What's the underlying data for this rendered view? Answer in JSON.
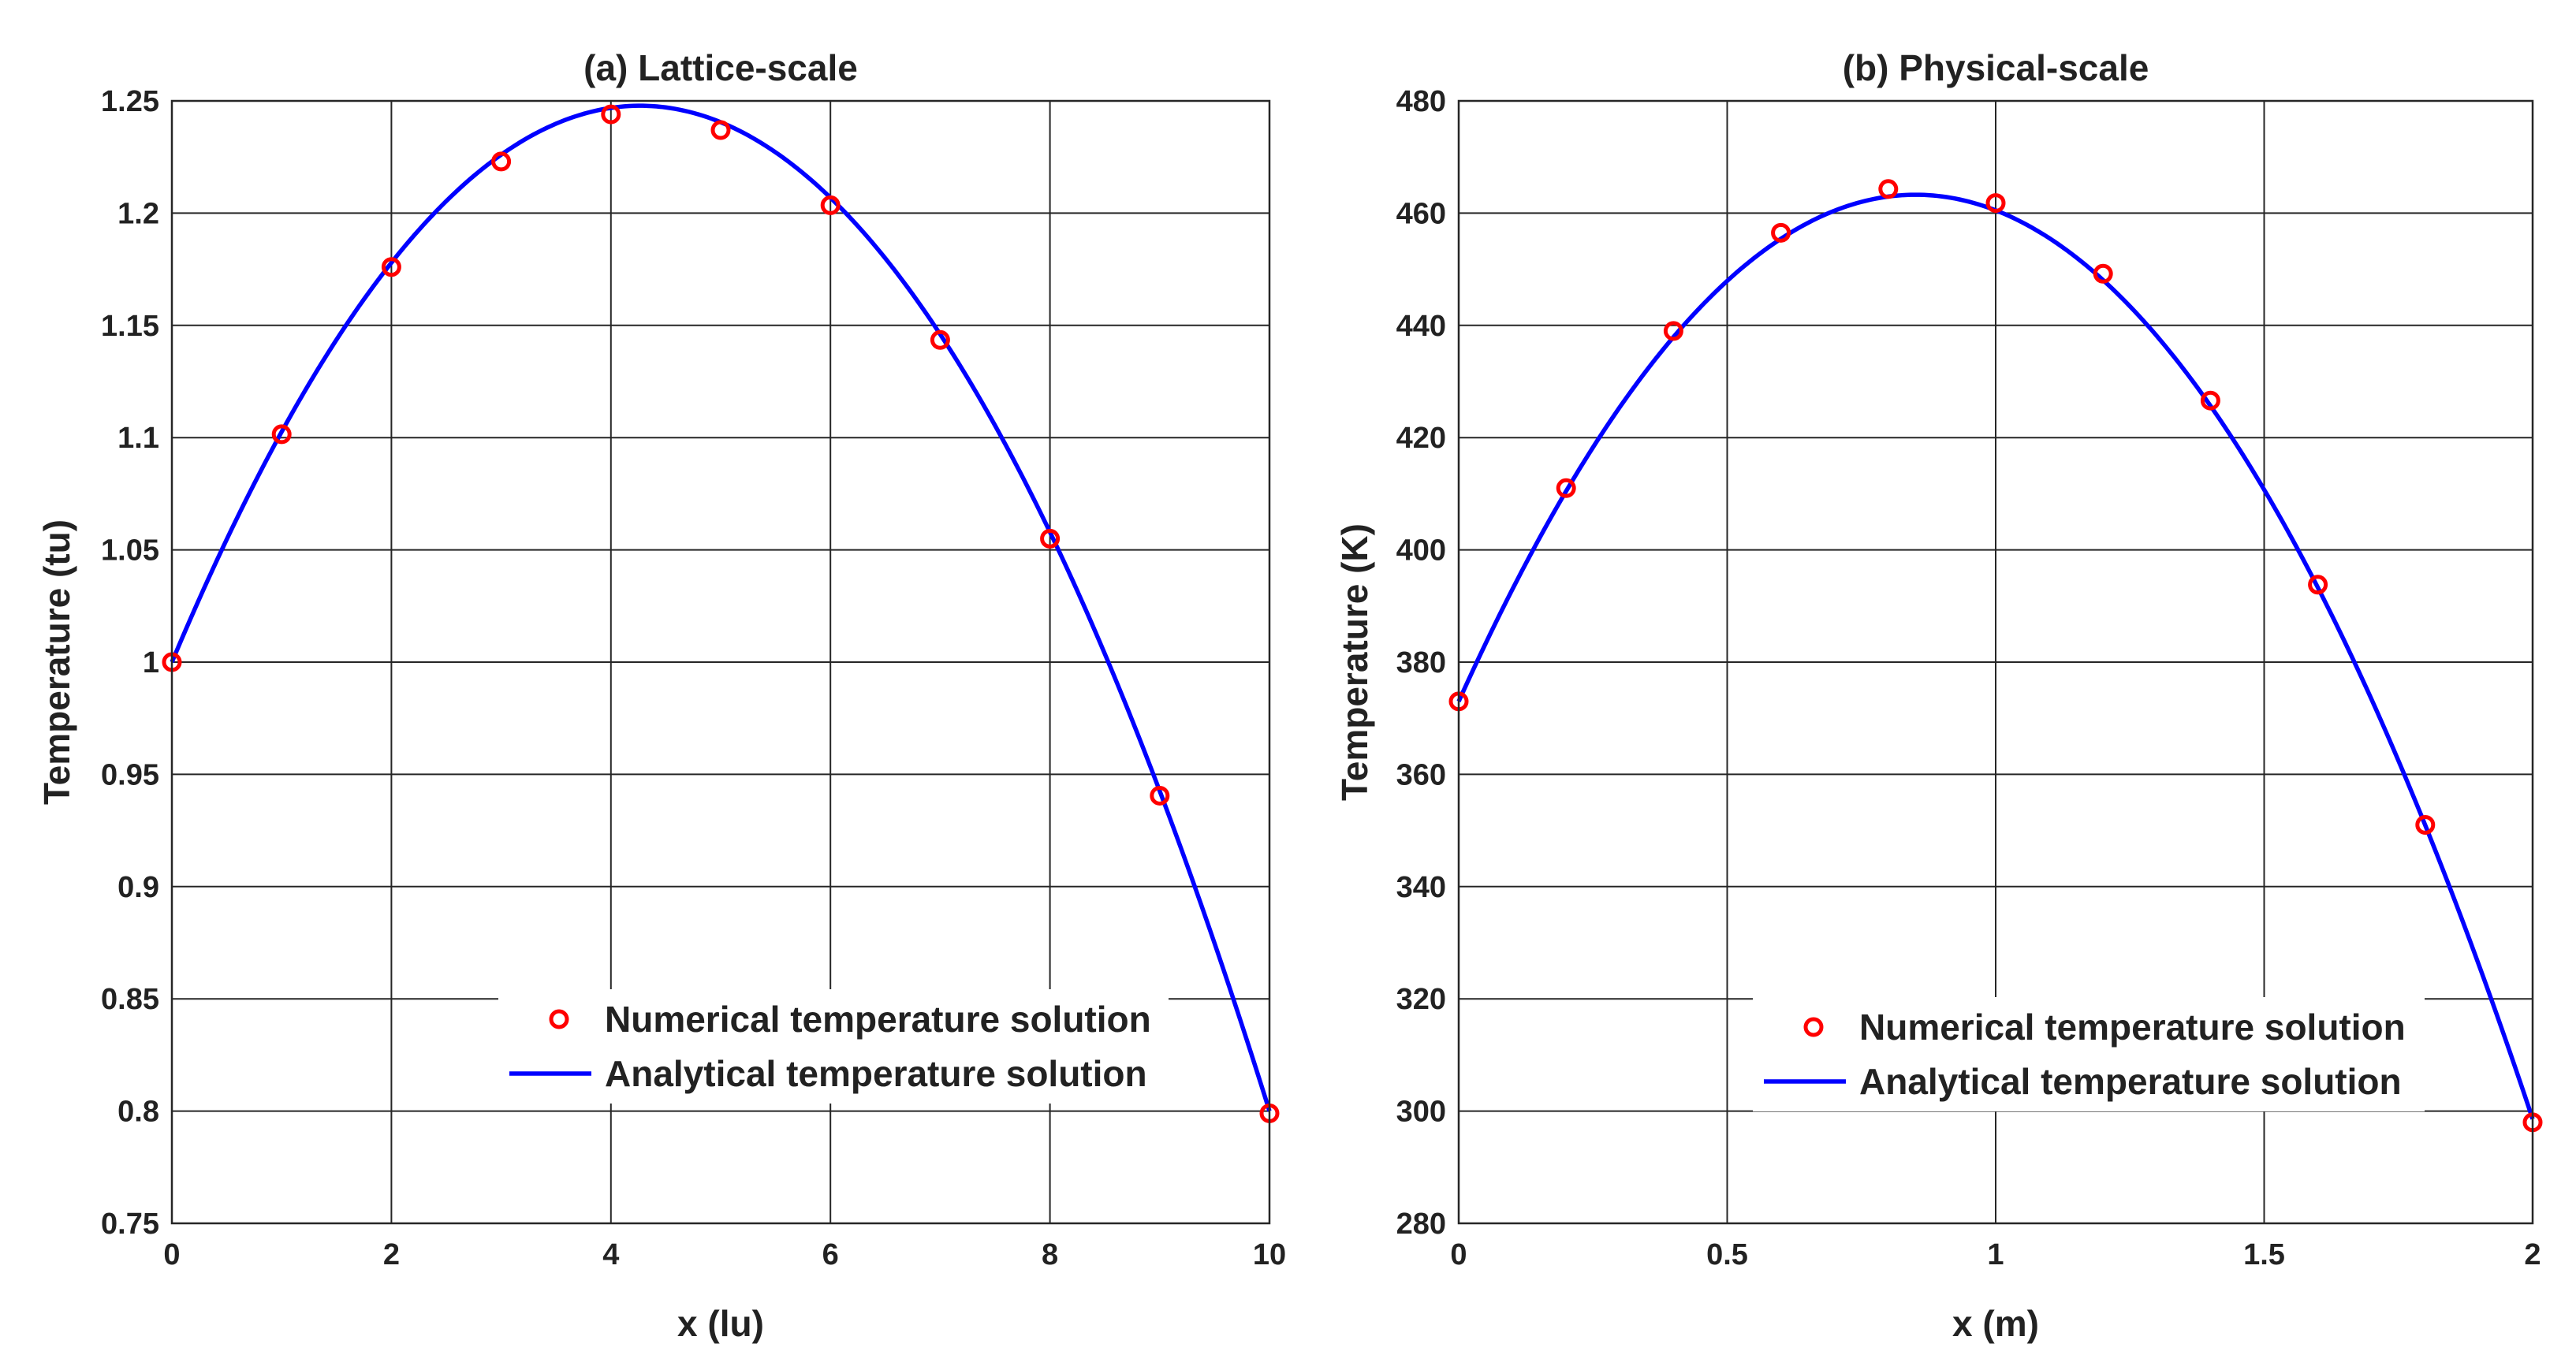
{
  "colors": {
    "numerical": "#ff0000",
    "analytical": "#0000ff",
    "axes": "#262626",
    "text": "#222222"
  },
  "chart_data": [
    {
      "type": "line",
      "title": "(a) Lattice-scale",
      "xlabel": "x (lu)",
      "ylabel": "Temperature (tu)",
      "xlim": [
        0,
        10
      ],
      "ylim": [
        0.75,
        1.25
      ],
      "xticks": [
        0,
        2,
        4,
        6,
        8,
        10
      ],
      "xtick_labels": [
        "0",
        "2",
        "4",
        "6",
        "8",
        "10"
      ],
      "yticks": [
        0.75,
        0.8,
        0.85,
        0.9,
        0.95,
        1,
        1.05,
        1.1,
        1.15,
        1.2,
        1.25
      ],
      "ytick_labels": [
        "0.75",
        "0.8",
        "0.85",
        "0.9",
        "0.95",
        "1",
        "1.05",
        "1.1",
        "1.15",
        "1.2",
        "1.25"
      ],
      "grid": true,
      "legend": {
        "position": "lower-right",
        "entries": [
          "Numerical temperature solution",
          "Analytical temperature solution"
        ]
      },
      "series": [
        {
          "name": "Numerical temperature solution",
          "style": "markers",
          "x": [
            0,
            1,
            2,
            3,
            4,
            5,
            6,
            7,
            8,
            9,
            10
          ],
          "y": [
            1.0,
            1.1015,
            1.176,
            1.223,
            1.244,
            1.237,
            1.2035,
            1.1435,
            1.055,
            0.9405,
            0.799
          ]
        },
        {
          "name": "Analytical temperature solution",
          "style": "line",
          "model": "quadratic",
          "coefficients": [
            1.0,
            0.1162,
            -0.01362
          ],
          "x_range": [
            0,
            10
          ]
        }
      ]
    },
    {
      "type": "line",
      "title": "(b) Physical-scale",
      "xlabel": "x (m)",
      "ylabel": "Temperature (K)",
      "xlim": [
        0,
        2
      ],
      "ylim": [
        280,
        480
      ],
      "xticks": [
        0,
        0.5,
        1,
        1.5,
        2
      ],
      "xtick_labels": [
        "0",
        "0.5",
        "1",
        "1.5",
        "2"
      ],
      "yticks": [
        280,
        300,
        320,
        340,
        360,
        380,
        400,
        420,
        440,
        460,
        480
      ],
      "ytick_labels": [
        "280",
        "300",
        "320",
        "340",
        "360",
        "380",
        "400",
        "420",
        "440",
        "460",
        "480"
      ],
      "grid": true,
      "legend": {
        "position": "lower-right",
        "entries": [
          "Numerical temperature solution",
          "Analytical temperature solution"
        ]
      },
      "series": [
        {
          "name": "Numerical temperature solution",
          "style": "markers",
          "x": [
            0,
            0.2,
            0.4,
            0.6,
            0.8,
            1.0,
            1.2,
            1.4,
            1.6,
            1.8,
            2.0
          ],
          "y": [
            373,
            411,
            439,
            456.5,
            464.3,
            461.8,
            449.2,
            426.6,
            393.8,
            351,
            298
          ]
        },
        {
          "name": "Analytical temperature solution",
          "style": "line",
          "model": "quadratic",
          "coefficients": [
            373,
            212.2,
            -124.7
          ],
          "x_range": [
            0,
            2
          ]
        }
      ]
    }
  ]
}
